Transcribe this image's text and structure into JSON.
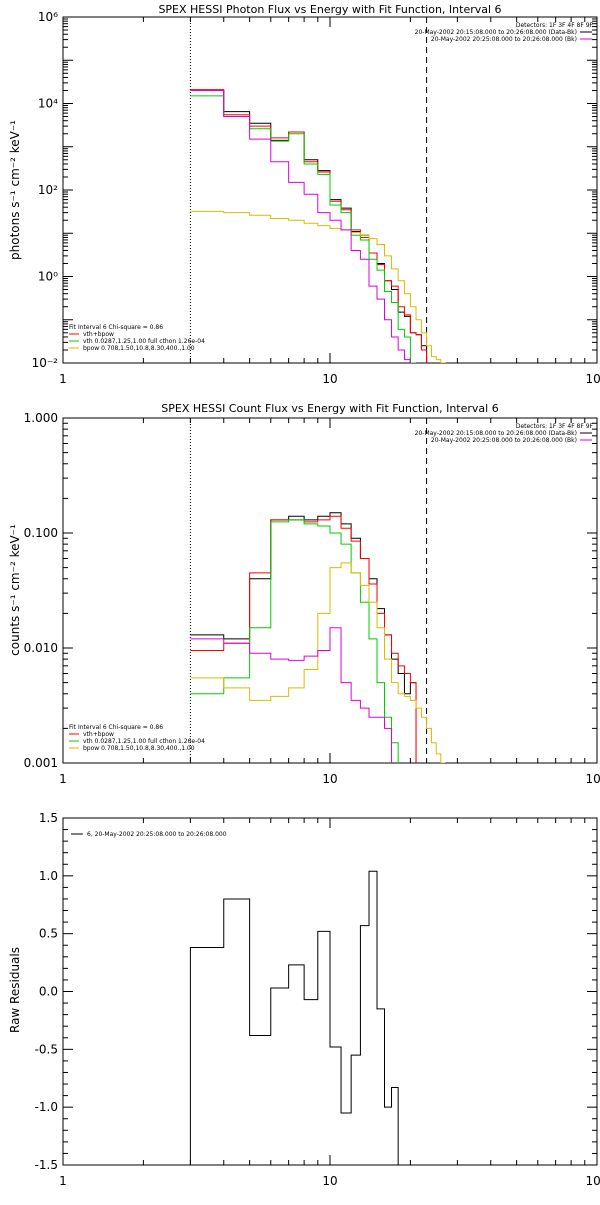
{
  "colors": {
    "data": "#000000",
    "total": "#ff0000",
    "vth": "#00cc00",
    "bpow": "#ddbb00",
    "bkg": "#dd00dd",
    "axes": "#000000"
  },
  "chart_data": [
    {
      "type": "line",
      "title": "SPEX HESSI Photon Flux vs Energy with Fit Function, Interval 6",
      "ylabel": "photons s⁻¹ cm⁻² keV⁻¹",
      "xlabel": "",
      "xscale": "log",
      "yscale": "log",
      "xlim": [
        1,
        100
      ],
      "ylim": [
        0.01,
        1000000
      ],
      "xticks": [
        {
          "v": 1,
          "label": "1"
        },
        {
          "v": 10,
          "label": "10"
        },
        {
          "v": 100,
          "label": "100"
        }
      ],
      "yticks": [
        {
          "v": 0.01,
          "label": "10⁻²"
        },
        {
          "v": 1,
          "label": "10⁰"
        },
        {
          "v": 100,
          "label": "10²"
        },
        {
          "v": 10000,
          "label": "10⁴"
        },
        {
          "v": 1000000,
          "label": "10⁶"
        }
      ],
      "vlines": [
        {
          "x": 3.0,
          "style": "dotted"
        },
        {
          "x": 23.0,
          "style": "dashed"
        }
      ],
      "legend_right": [
        "Detectors: 1F 3F 4F 8F 9F",
        "20-May-2002 20:15:08.000 to 20:26:08.000 (Data-Bk)",
        "20-May-2002 20:25:08.000 to 20:26:08.000 (Bk)"
      ],
      "legend_left": [
        "Fit Interval  6    Chi-square = 0.86",
        "vth+bpow",
        "vth 0.0287,1.25,1.00  full cthon 1.26e-04",
        "bpow 0.708,1.50,10.8,8.30,400.,1.00"
      ],
      "edges": [
        3,
        4,
        5,
        6,
        7,
        8,
        9,
        10,
        11,
        12,
        13,
        14,
        15,
        16,
        17,
        18,
        19,
        20,
        21,
        22,
        23,
        24,
        25,
        26,
        27,
        28
      ],
      "series": [
        {
          "name": "Data-Bk",
          "color": "data",
          "values": [
            20000,
            6500,
            3500,
            1400,
            2200,
            500,
            280,
            60,
            38,
            11,
            9,
            3.5,
            2.0,
            0.8,
            0.5,
            0.15,
            0.12,
            0.05,
            0.045,
            0.025,
            null,
            null,
            null,
            null,
            null
          ]
        },
        {
          "name": "vth+bpow",
          "color": "total",
          "values": [
            21000,
            5500,
            3000,
            1600,
            2200,
            450,
            260,
            55,
            35,
            12,
            8,
            3.5,
            1.9,
            0.8,
            0.6,
            0.2,
            0.13,
            0.05,
            0.045,
            0.02,
            null,
            null,
            null,
            null,
            null
          ]
        },
        {
          "name": "vth",
          "color": "vth",
          "values": [
            15000,
            5000,
            2600,
            1350,
            2000,
            400,
            230,
            45,
            30,
            9,
            7,
            2.5,
            1.4,
            0.45,
            0.25,
            0.06,
            0.04,
            0.01,
            null,
            null,
            null,
            null,
            null,
            null,
            null
          ]
        },
        {
          "name": "bpow",
          "color": "bpow",
          "values": [
            32,
            30,
            26,
            22,
            20,
            17,
            15,
            13,
            12,
            10.5,
            9,
            7.5,
            5.5,
            3,
            1.5,
            0.8,
            0.4,
            0.2,
            0.1,
            0.05,
            0.025,
            0.014,
            0.012,
            0.01,
            0.009
          ]
        },
        {
          "name": "Bk",
          "color": "bkg",
          "values": [
            20000,
            5000,
            1500,
            450,
            150,
            80,
            30,
            20,
            12,
            4,
            2.5,
            0.6,
            0.3,
            0.1,
            0.04,
            0.02,
            0.012,
            null,
            null,
            null,
            null,
            null,
            null,
            null,
            null
          ]
        }
      ]
    },
    {
      "type": "line",
      "title": "SPEX HESSI Count Flux vs Energy with Fit Function, Interval 6",
      "ylabel": "counts s⁻¹ cm⁻² keV⁻¹",
      "xlabel": "",
      "xscale": "log",
      "yscale": "log",
      "xlim": [
        1,
        100
      ],
      "ylim": [
        0.001,
        1.0
      ],
      "xticks": [
        {
          "v": 1,
          "label": "1"
        },
        {
          "v": 10,
          "label": "10"
        },
        {
          "v": 100,
          "label": "100"
        }
      ],
      "yticks": [
        {
          "v": 0.001,
          "label": "0.001"
        },
        {
          "v": 0.01,
          "label": "0.010"
        },
        {
          "v": 0.1,
          "label": "0.100"
        },
        {
          "v": 1,
          "label": "1.000"
        }
      ],
      "vlines": [
        {
          "x": 3.0,
          "style": "dotted"
        },
        {
          "x": 23.0,
          "style": "dashed"
        }
      ],
      "legend_right": [
        "Detectors: 1F 3F 4F 8F 9F",
        "20-May-2002 20:15:08.000 to 20:26:08.000 (Data-Bk)",
        "20-May-2002 20:25:08.000 to 20:26:08.000 (Bk)"
      ],
      "legend_left": [
        "Fit Interval  6    Chi-square = 0.86",
        "vth+bpow",
        "vth 0.0287,1.25,1.00  full cthon 1.26e-04",
        "bpow 0.708,1.50,10.8,8.30,400.,1.00"
      ],
      "edges": [
        3,
        4,
        5,
        6,
        7,
        8,
        9,
        10,
        11,
        12,
        13,
        14,
        15,
        16,
        17,
        18,
        19,
        20,
        21,
        22,
        23,
        24,
        25,
        26,
        27,
        28
      ],
      "series": [
        {
          "name": "Data-Bk",
          "color": "data",
          "values": [
            0.013,
            0.012,
            0.04,
            0.13,
            0.14,
            0.13,
            0.14,
            0.15,
            0.12,
            0.09,
            0.06,
            0.04,
            0.022,
            0.013,
            0.008,
            0.006,
            0.004,
            0.005,
            null,
            null,
            null,
            null,
            null,
            null,
            null
          ]
        },
        {
          "name": "vth+bpow",
          "color": "total",
          "values": [
            0.0095,
            0.011,
            0.045,
            0.13,
            0.13,
            0.125,
            0.13,
            0.14,
            0.11,
            0.085,
            0.06,
            0.036,
            0.02,
            0.013,
            0.009,
            0.007,
            0.006,
            0.005,
            null,
            null,
            null,
            null,
            null,
            null,
            null
          ]
        },
        {
          "name": "vth",
          "color": "vth",
          "values": [
            0.004,
            0.0055,
            0.015,
            0.125,
            0.13,
            0.12,
            0.115,
            0.1,
            0.08,
            0.045,
            0.025,
            0.012,
            0.005,
            0.0025,
            0.0015,
            null,
            null,
            null,
            null,
            null,
            null,
            null,
            null,
            null,
            null
          ]
        },
        {
          "name": "bpow",
          "color": "bpow",
          "values": [
            0.0055,
            0.0045,
            0.0035,
            0.0038,
            0.0045,
            0.0065,
            0.02,
            0.05,
            0.055,
            0.045,
            0.035,
            0.025,
            0.015,
            0.008,
            0.005,
            0.004,
            0.0038,
            0.0035,
            0.003,
            0.0025,
            0.002,
            0.0015,
            0.0012,
            0.001,
            null
          ]
        },
        {
          "name": "Bk",
          "color": "bkg",
          "values": [
            0.012,
            0.011,
            0.009,
            0.008,
            0.0078,
            0.0085,
            0.0095,
            0.015,
            0.005,
            0.0035,
            0.003,
            0.0025,
            0.0025,
            0.002,
            null,
            null,
            null,
            null,
            null,
            null,
            null,
            null,
            null,
            null,
            null
          ]
        }
      ]
    },
    {
      "type": "line",
      "title": "",
      "ylabel": "Raw Residuals",
      "xlabel": "",
      "xscale": "log",
      "yscale": "linear",
      "xlim": [
        1,
        100
      ],
      "ylim": [
        -1.5,
        1.5
      ],
      "xticks": [
        {
          "v": 1,
          "label": "1"
        },
        {
          "v": 10,
          "label": "10"
        },
        {
          "v": 100,
          "label": "100"
        }
      ],
      "yticks": [
        {
          "v": -1.5,
          "label": "-1.5"
        },
        {
          "v": -1.0,
          "label": "-1.0"
        },
        {
          "v": -0.5,
          "label": "-0.5"
        },
        {
          "v": 0.0,
          "label": "0.0"
        },
        {
          "v": 0.5,
          "label": "0.5"
        },
        {
          "v": 1.0,
          "label": "1.0"
        },
        {
          "v": 1.5,
          "label": "1.5"
        }
      ],
      "vlines": [],
      "legend_top_left": [
        "6, 20-May-2002 20:25:08.000 to 20:26:08.000"
      ],
      "edges": [
        3,
        4,
        5,
        6,
        7,
        8,
        9,
        10,
        11,
        12,
        13,
        14,
        15,
        16,
        17,
        18,
        19,
        20,
        21,
        22,
        23
      ],
      "series": [
        {
          "name": "",
          "color": "data",
          "values": [
            0.38,
            0.8,
            -0.38,
            0.03,
            0.23,
            -0.07,
            0.52,
            -0.48,
            -1.05,
            -0.55,
            0.57,
            1.04,
            -0.15,
            -1.0,
            -0.83
          ]
        }
      ]
    }
  ]
}
